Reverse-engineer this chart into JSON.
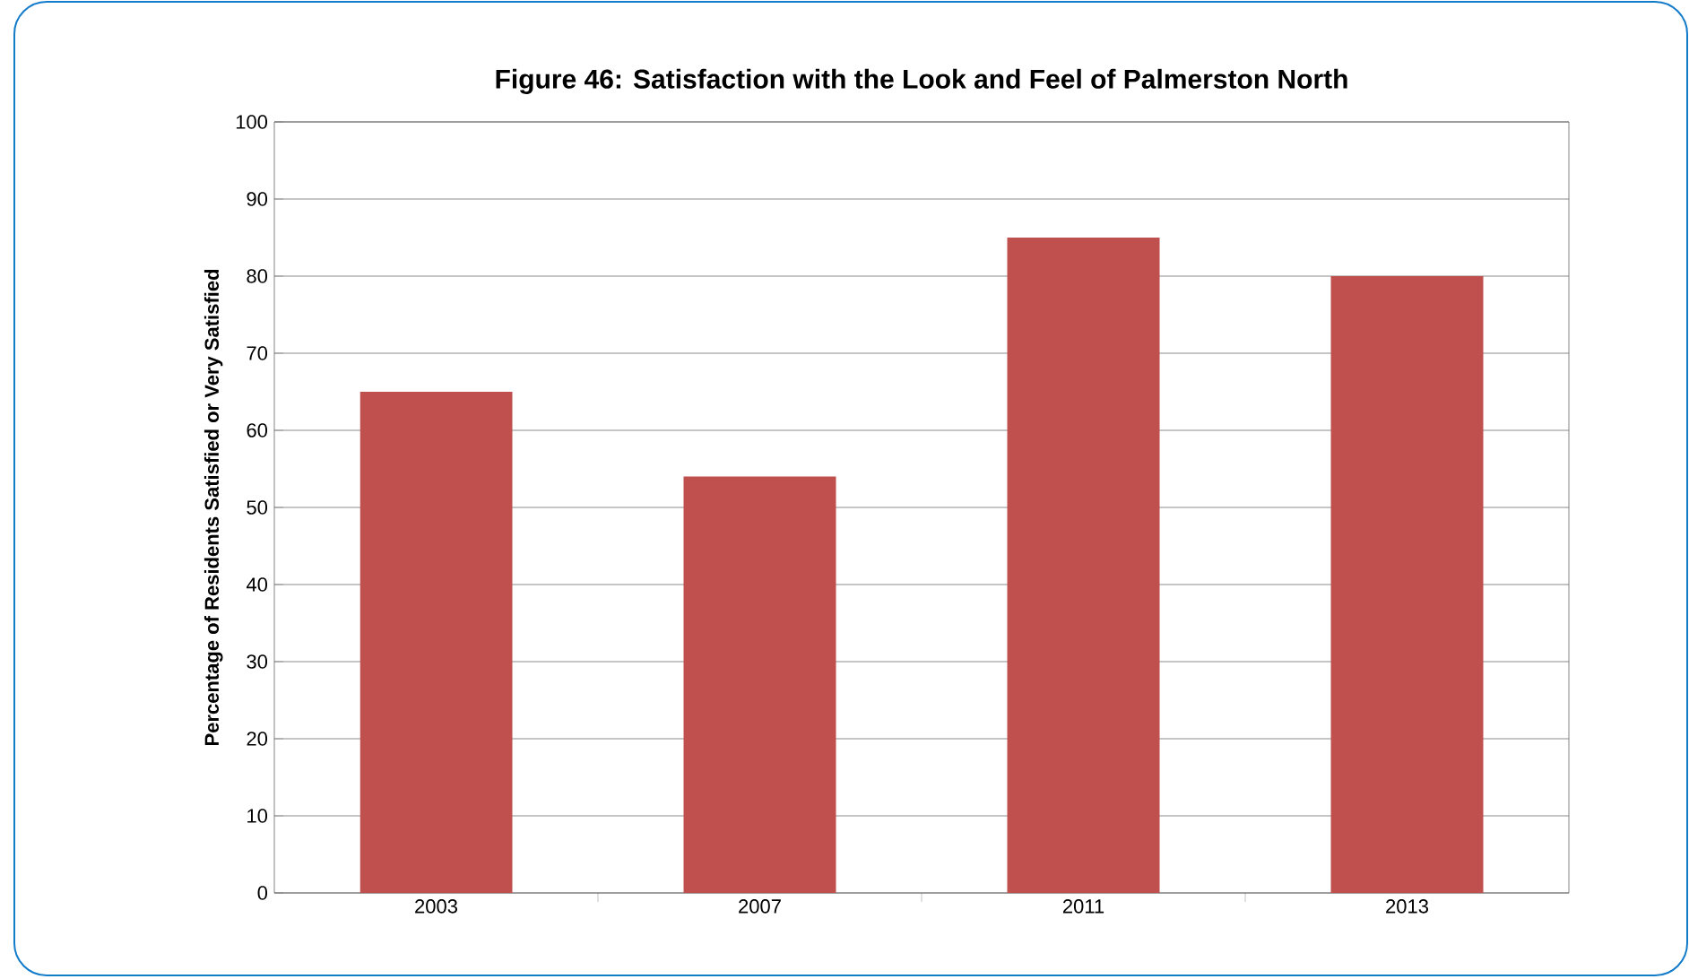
{
  "chart_data": {
    "type": "bar",
    "title": "Figure 46: Satisfaction with the Look and Feel of Palmerston North",
    "ylabel": "Percentage of Residents Satisfied or Very Satisfied",
    "categories": [
      "2003",
      "2007",
      "2011",
      "2013"
    ],
    "values": [
      65,
      54,
      85,
      80
    ],
    "color": "#c0504d",
    "ylim": [
      0,
      100
    ],
    "yticks": [
      0,
      10,
      20,
      30,
      40,
      50,
      60,
      70,
      80,
      90,
      100
    ],
    "grid": "y"
  }
}
